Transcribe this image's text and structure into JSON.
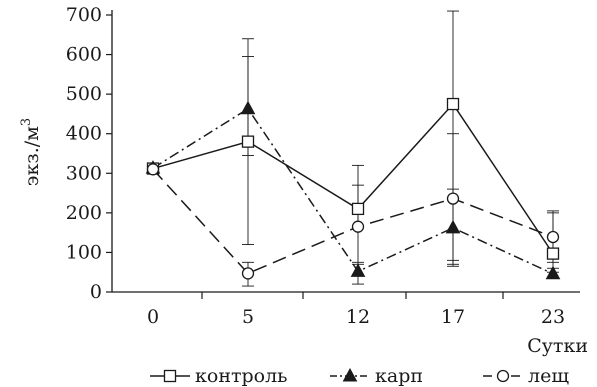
{
  "chart_data": {
    "type": "line",
    "categories": [
      "0",
      "5",
      "12",
      "17",
      "23"
    ],
    "xlabel": "Сутки",
    "ylabel_main": "экз./м",
    "ylabel_sup": "3",
    "ylim": [
      0,
      700
    ],
    "yticks": [
      0,
      100,
      200,
      300,
      400,
      500,
      600,
      700
    ],
    "grid": false,
    "legend_position": "bottom",
    "series": [
      {
        "name": "контроль",
        "marker": "open-square",
        "dash": "solid",
        "values": [
          312,
          380,
          210,
          475,
          97
        ],
        "err_low": [
          312,
          120,
          165,
          80,
          75
        ],
        "err_high": [
          312,
          595,
          270,
          710,
          205
        ]
      },
      {
        "name": "карп",
        "marker": "filled-triangle",
        "dash": "dash-dot",
        "values": [
          313,
          463,
          52,
          162,
          46
        ],
        "err_low": [
          313,
          345,
          20,
          65,
          35
        ],
        "err_high": [
          313,
          640,
          75,
          260,
          60
        ]
      },
      {
        "name": "лещ",
        "marker": "open-circle",
        "dash": "dashed",
        "values": [
          310,
          47,
          165,
          236,
          139
        ],
        "err_low": [
          310,
          15,
          70,
          70,
          50
        ],
        "err_high": [
          310,
          75,
          320,
          400,
          200
        ]
      }
    ]
  }
}
